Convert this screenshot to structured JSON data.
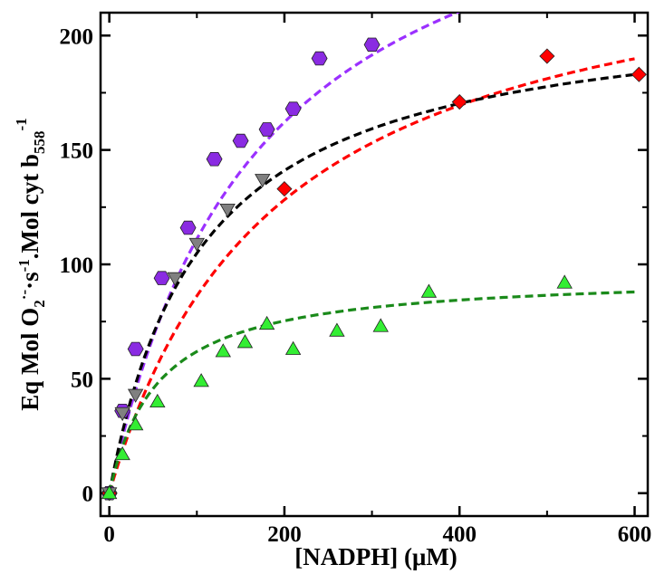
{
  "chart_data": {
    "type": "scatter",
    "title": "",
    "xlabel": "[NADPH] (μM)",
    "ylabel_parts": {
      "base": "Eq Mol O",
      "sub_o2": "2",
      "sup_o2": "·-",
      "s_part": "·s",
      "sup_s": "-1",
      "mol_part": ".Mol cyt b",
      "sub_b": "558",
      "sup_end": "-1"
    },
    "xlim": [
      -10,
      615
    ],
    "ylim": [
      -10,
      210
    ],
    "x_ticks": [
      0,
      200,
      400,
      600
    ],
    "x_tick_labels": [
      "0",
      "200",
      "400",
      "600"
    ],
    "y_ticks": [
      0,
      50,
      100,
      150,
      200
    ],
    "y_tick_labels": [
      "0",
      "50",
      "100",
      "150",
      "200"
    ],
    "grid": false,
    "legend": "none",
    "series": [
      {
        "marker": "hexagon",
        "color": "#8a2be2",
        "points": [
          [
            0,
            0
          ],
          [
            15,
            36
          ],
          [
            30,
            63
          ],
          [
            60,
            94
          ],
          [
            90,
            116
          ],
          [
            120,
            146
          ],
          [
            150,
            154
          ],
          [
            180,
            159
          ],
          [
            210,
            168
          ],
          [
            240,
            190
          ],
          [
            300,
            196
          ]
        ],
        "fit": {
          "vmax": 300,
          "km": 170,
          "x_end": 430
        }
      },
      {
        "marker": "diamond",
        "color": "#ff0000",
        "points": [
          [
            0,
            0
          ],
          [
            200,
            133
          ],
          [
            400,
            171
          ],
          [
            500,
            191
          ],
          [
            605,
            183
          ]
        ],
        "fit": {
          "vmax": 250,
          "km": 190,
          "x_end": 600
        }
      },
      {
        "marker": "triangle-down",
        "color": "#808080",
        "points": [
          [
            0,
            0
          ],
          [
            15,
            35
          ],
          [
            30,
            43
          ],
          [
            75,
            94
          ],
          [
            100,
            109
          ],
          [
            135,
            124
          ],
          [
            175,
            137
          ]
        ],
        "fit": {
          "vmax": 215,
          "km": 105,
          "x_end": 600
        }
      },
      {
        "marker": "triangle-up",
        "color": "#33ee33",
        "points": [
          [
            0,
            0
          ],
          [
            15,
            17
          ],
          [
            30,
            30
          ],
          [
            55,
            40
          ],
          [
            105,
            49
          ],
          [
            130,
            62
          ],
          [
            155,
            66
          ],
          [
            180,
            74
          ],
          [
            210,
            63
          ],
          [
            260,
            71
          ],
          [
            310,
            73
          ],
          [
            365,
            88
          ],
          [
            520,
            92
          ]
        ],
        "fit": {
          "vmax": 96,
          "km": 55,
          "x_end": 600
        }
      }
    ],
    "fit_colors": [
      "#9b30ff",
      "#ff0000",
      "#000000",
      "#1a8a1a"
    ]
  }
}
